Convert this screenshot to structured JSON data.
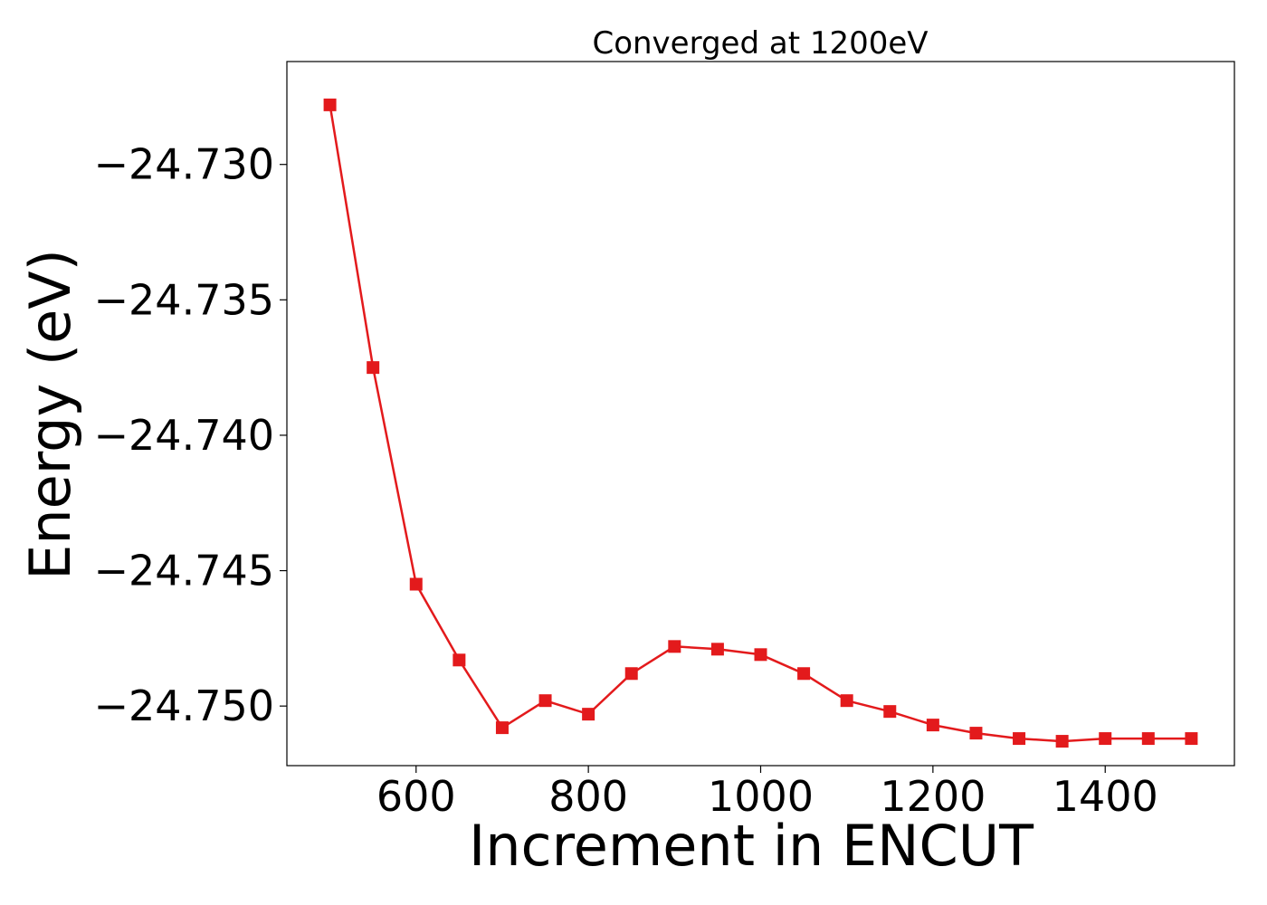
{
  "chart_data": {
    "type": "line",
    "title": "Converged at 1200eV",
    "xlabel": "Increment in ENCUT",
    "ylabel": "Energy (eV)",
    "xlim": [
      450,
      1550
    ],
    "ylim": [
      -24.7522,
      -24.7262
    ],
    "xticks": [
      600,
      800,
      1000,
      1200,
      1400
    ],
    "yticks": [
      -24.73,
      -24.735,
      -24.74,
      -24.745,
      -24.75
    ],
    "ytick_labels": [
      "−24.730",
      "−24.735",
      "−24.740",
      "−24.745",
      "−24.750"
    ],
    "grid": false,
    "marker": "square",
    "color": "#e31a1c",
    "series": [
      {
        "x": [
          500,
          550,
          600,
          650,
          700,
          750,
          800,
          850,
          900,
          950,
          1000,
          1050,
          1100,
          1150,
          1200,
          1250,
          1300,
          1350,
          1400,
          1450,
          1500
        ],
        "y": [
          -24.7278,
          -24.7375,
          -24.7455,
          -24.7483,
          -24.7508,
          -24.7498,
          -24.7503,
          -24.7488,
          -24.7478,
          -24.7479,
          -24.7481,
          -24.7488,
          -24.7498,
          -24.7502,
          -24.7507,
          -24.751,
          -24.7512,
          -24.7513,
          -24.7512,
          -24.7512,
          -24.7512
        ]
      }
    ]
  }
}
